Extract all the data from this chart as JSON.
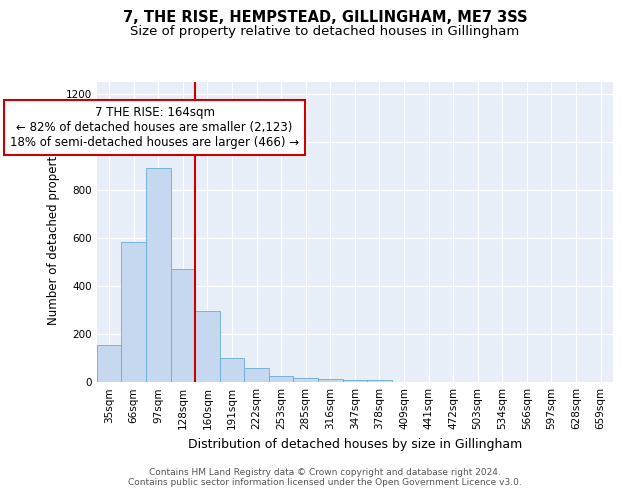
{
  "title": "7, THE RISE, HEMPSTEAD, GILLINGHAM, ME7 3SS",
  "subtitle": "Size of property relative to detached houses in Gillingham",
  "xlabel": "Distribution of detached houses by size in Gillingham",
  "ylabel": "Number of detached properties",
  "categories": [
    "35sqm",
    "66sqm",
    "97sqm",
    "128sqm",
    "160sqm",
    "191sqm",
    "222sqm",
    "253sqm",
    "285sqm",
    "316sqm",
    "347sqm",
    "378sqm",
    "409sqm",
    "441sqm",
    "472sqm",
    "503sqm",
    "534sqm",
    "566sqm",
    "597sqm",
    "628sqm",
    "659sqm"
  ],
  "values": [
    155,
    585,
    890,
    470,
    295,
    100,
    60,
    27,
    17,
    13,
    10,
    10,
    0,
    0,
    0,
    0,
    0,
    0,
    0,
    0,
    0
  ],
  "bar_color": "#c5d8f0",
  "bar_edge_color": "#6aaad4",
  "red_line_index": 4,
  "annotation_text_line1": "7 THE RISE: 164sqm",
  "annotation_text_line2": "← 82% of detached houses are smaller (2,123)",
  "annotation_text_line3": "18% of semi-detached houses are larger (466) →",
  "annotation_box_color": "#ffffff",
  "annotation_box_edge": "#cc0000",
  "red_line_color": "#cc0000",
  "background_color": "#e8eef8",
  "ylim": [
    0,
    1250
  ],
  "yticks": [
    0,
    200,
    400,
    600,
    800,
    1000,
    1200
  ],
  "footer1": "Contains HM Land Registry data © Crown copyright and database right 2024.",
  "footer2": "Contains public sector information licensed under the Open Government Licence v3.0.",
  "title_fontsize": 10.5,
  "subtitle_fontsize": 9.5,
  "xlabel_fontsize": 9,
  "ylabel_fontsize": 8.5,
  "tick_fontsize": 7.5,
  "annotation_fontsize": 8.5,
  "footer_fontsize": 6.5
}
